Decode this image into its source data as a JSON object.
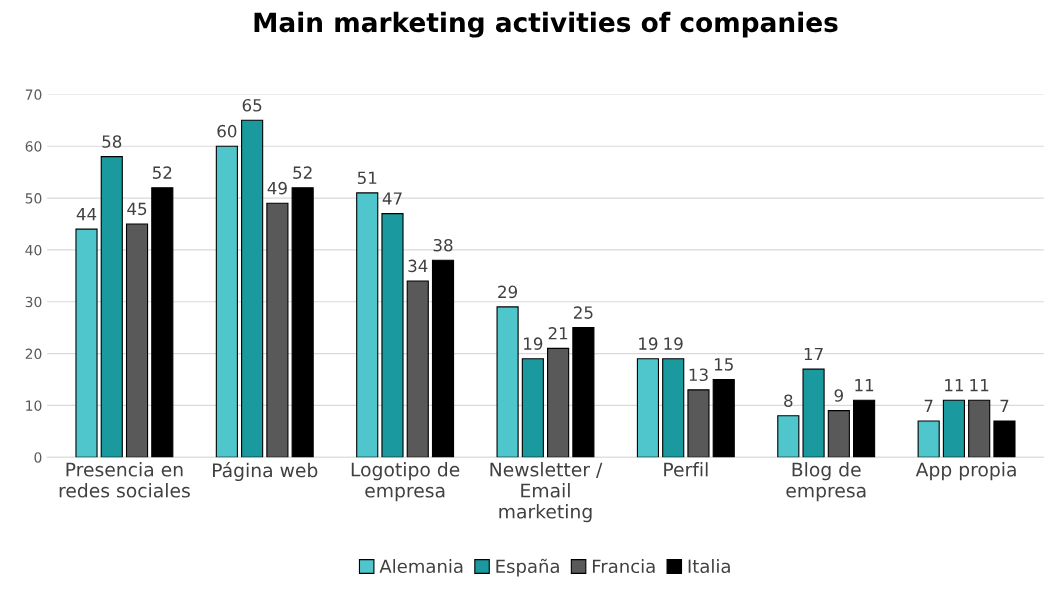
{
  "chart_data": {
    "type": "bar",
    "title": "Main marketing activities of companies",
    "categories": [
      "Presencia en\nredes sociales",
      "Página web",
      "Logotipo de\nempresa",
      "Newsletter /\nEmail\nmarketing",
      "Perfil",
      "Blog de\nempresa",
      "App propia"
    ],
    "series": [
      {
        "name": "Alemania",
        "color": "#4fc6cc",
        "values": [
          44,
          60,
          51,
          29,
          19,
          8,
          7
        ]
      },
      {
        "name": "España",
        "color": "#1a9a9e",
        "values": [
          58,
          65,
          47,
          19,
          19,
          17,
          11
        ]
      },
      {
        "name": "Francia",
        "color": "#595959",
        "values": [
          45,
          49,
          34,
          21,
          13,
          9,
          11
        ]
      },
      {
        "name": "Italia",
        "color": "#000000",
        "values": [
          52,
          52,
          38,
          25,
          15,
          11,
          7
        ]
      }
    ],
    "ylim": [
      0,
      70
    ],
    "yticks": [
      0,
      10,
      20,
      30,
      40,
      50,
      60,
      70
    ],
    "grid": "y",
    "legend": "bottom",
    "data_labels": true
  }
}
